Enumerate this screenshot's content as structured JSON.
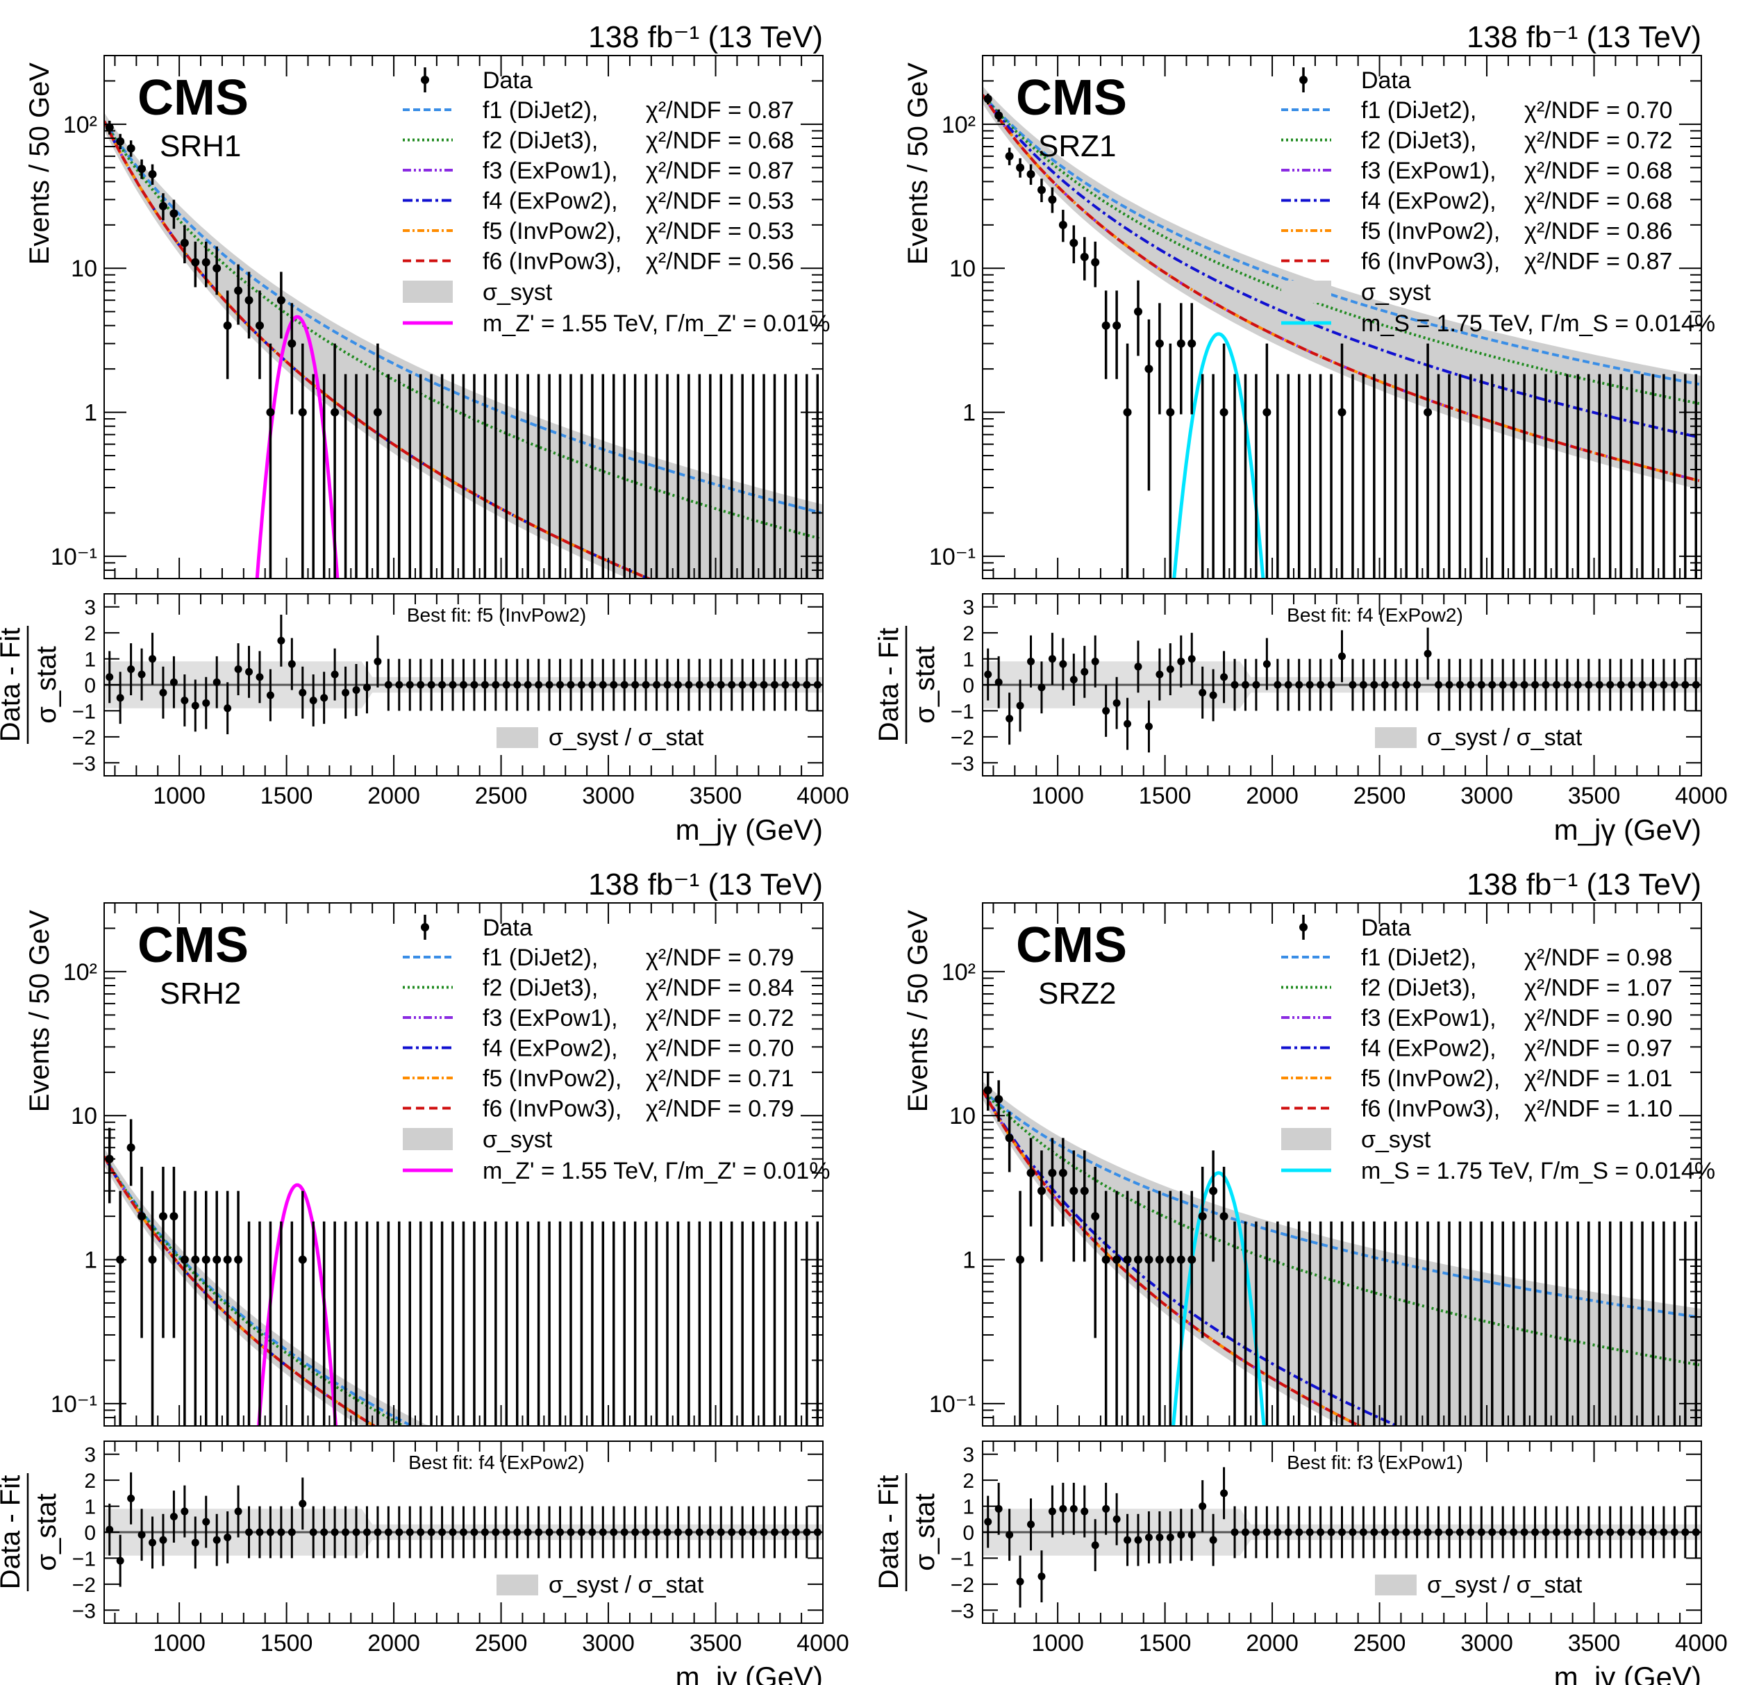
{
  "figure": {
    "common": {
      "lumi_label": "138 fb⁻¹ (13 TeV)",
      "cms_label": "CMS",
      "ylabel_top": "Events / 50 GeV",
      "ylabel_bottom_num": "Data - Fit",
      "ylabel_bottom_den": "σ_stat",
      "xlabel": "m_jγ (GeV)",
      "legend_data": "Data",
      "legend_syst": "σ_syst",
      "ratio_legend": "σ_syst / σ_stat",
      "x_ticks": [
        1000,
        1500,
        2000,
        2500,
        3000,
        3500,
        4000
      ],
      "y_ticks_top": [
        "10⁻¹",
        "1",
        "10",
        "10²"
      ],
      "y_ticks_bottom": [
        -3,
        -2,
        -1,
        0,
        1,
        2,
        3
      ],
      "function_labels": [
        "f1 (DiJet2),",
        "f2 (DiJet3),",
        "f3 (ExPow1),",
        "f4 (ExPow2),",
        "f5 (InvPow2),",
        "f6 (InvPow3),"
      ],
      "function_colors": [
        "#3a8ee6",
        "#1f8a1f",
        "#8a2be2",
        "#1010d0",
        "#ff8c00",
        "#d01010"
      ]
    }
  },
  "chart_data": [
    {
      "type": "scatter",
      "region": "SRH1",
      "xlabel": "m_jγ (GeV)",
      "ylabel": "Events / 50 GeV",
      "xlim": [
        650,
        4000
      ],
      "ylim": [
        0.07,
        300
      ],
      "y_log": true,
      "chi2": [
        "χ²/NDF = 0.87",
        "χ²/NDF = 0.68",
        "χ²/NDF = 0.87",
        "χ²/NDF = 0.53",
        "χ²/NDF = 0.53",
        "χ²/NDF = 0.56"
      ],
      "signal_label": "m_Z' = 1.55 TeV, Γ/m_Z' = 0.01%",
      "signal_color": "#ff00ff",
      "signal": {
        "mass": 1550,
        "peak": 4.6,
        "sigma": 48
      },
      "best_fit": "Best fit: f5 (InvPow2)",
      "fit_steep": {
        "a": 105,
        "b": 4.6
      },
      "fit_shallow": {
        "a": 105,
        "b": 3.45
      },
      "data_x": [
        675,
        725,
        775,
        825,
        875,
        925,
        975,
        1025,
        1075,
        1125,
        1175,
        1225,
        1275,
        1325,
        1375,
        1425,
        1475,
        1525,
        1575,
        1625,
        1675,
        1725,
        1775,
        1825,
        1875,
        1925
      ],
      "data_y": [
        95,
        76,
        68,
        49,
        45,
        27,
        24,
        15,
        11,
        11,
        10,
        4,
        7,
        6,
        4,
        1,
        6,
        3,
        1,
        0,
        0,
        1,
        0,
        0,
        0,
        1
      ],
      "pulls": [
        0.3,
        -0.5,
        0.6,
        0.4,
        1.0,
        -0.3,
        0.1,
        -0.6,
        -0.8,
        -0.7,
        0.1,
        -0.9,
        0.6,
        0.5,
        0.3,
        -0.4,
        1.7,
        0.8,
        -0.3,
        -0.6,
        -0.5,
        0.4,
        -0.3,
        -0.2,
        -0.1,
        0.9
      ]
    },
    {
      "type": "scatter",
      "region": "SRZ1",
      "xlabel": "m_jγ (GeV)",
      "ylabel": "Events / 50 GeV",
      "xlim": [
        650,
        4000
      ],
      "ylim": [
        0.07,
        300
      ],
      "y_log": true,
      "chi2": [
        "χ²/NDF = 0.70",
        "χ²/NDF = 0.72",
        "χ²/NDF = 0.68",
        "χ²/NDF = 0.68",
        "χ²/NDF = 0.86",
        "χ²/NDF = 0.87"
      ],
      "signal_label": "m_S = 1.75 TeV, Γ/m_S = 0.014%",
      "signal_color": "#00e5ff",
      "signal": {
        "mass": 1750,
        "peak": 3.5,
        "sigma": 55
      },
      "best_fit": "Best fit: f4 (ExPow2)",
      "fit_steep": {
        "a": 160,
        "b": 3.4
      },
      "fit_shallow": {
        "a": 160,
        "b": 2.55
      },
      "data_x": [
        675,
        725,
        775,
        825,
        875,
        925,
        975,
        1025,
        1075,
        1125,
        1175,
        1225,
        1275,
        1325,
        1375,
        1425,
        1475,
        1525,
        1575,
        1625,
        1675,
        1725,
        1775,
        1975,
        2325,
        2725
      ],
      "data_y": [
        150,
        115,
        60,
        50,
        45,
        35,
        30,
        20,
        15,
        12,
        11,
        4,
        4,
        1,
        5,
        2,
        3,
        1,
        3,
        3,
        0,
        0,
        1,
        1,
        1,
        1
      ],
      "pulls": [
        0.4,
        0.1,
        -1.3,
        -0.8,
        0.9,
        -0.1,
        1.0,
        0.8,
        0.2,
        0.5,
        0.9,
        -1.0,
        -0.7,
        -1.5,
        0.7,
        -1.6,
        0.4,
        0.6,
        0.9,
        1.0,
        -0.3,
        -0.4,
        0.3,
        0.8,
        1.1,
        1.2
      ]
    },
    {
      "type": "scatter",
      "region": "SRH2",
      "xlabel": "m_jγ (GeV)",
      "ylabel": "Events / 50 GeV",
      "xlim": [
        650,
        4000
      ],
      "ylim": [
        0.07,
        300
      ],
      "y_log": true,
      "chi2": [
        "χ²/NDF = 0.79",
        "χ²/NDF = 0.84",
        "χ²/NDF = 0.72",
        "χ²/NDF = 0.70",
        "χ²/NDF = 0.71",
        "χ²/NDF = 0.79"
      ],
      "signal_label": "m_Z' = 1.55 TeV, Γ/m_Z' = 0.01%",
      "signal_color": "#ff00ff",
      "signal": {
        "mass": 1550,
        "peak": 3.3,
        "sigma": 48
      },
      "best_fit": "Best fit: f4 (ExPow2)",
      "fit_steep": {
        "a": 5.2,
        "b": 4.0
      },
      "fit_shallow": {
        "a": 5.2,
        "b": 3.7
      },
      "data_x": [
        675,
        725,
        775,
        825,
        875,
        925,
        975,
        1025,
        1075,
        1125,
        1175,
        1225,
        1275,
        1575
      ],
      "data_y": [
        5,
        1,
        6,
        2,
        1,
        2,
        2,
        1,
        1,
        1,
        1,
        1,
        1,
        1
      ],
      "pulls": [
        0.1,
        -1.1,
        1.3,
        -0.1,
        -0.4,
        -0.3,
        0.6,
        0.8,
        -0.4,
        0.4,
        -0.3,
        -0.2,
        0.8,
        1.1
      ]
    },
    {
      "type": "scatter",
      "region": "SRZ2",
      "xlabel": "m_jγ (GeV)",
      "ylabel": "Events / 50 GeV",
      "xlim": [
        650,
        4000
      ],
      "ylim": [
        0.07,
        300
      ],
      "y_log": true,
      "chi2": [
        "χ²/NDF = 0.98",
        "χ²/NDF = 1.07",
        "χ²/NDF = 0.90",
        "χ²/NDF = 0.97",
        "χ²/NDF = 1.01",
        "χ²/NDF = 1.10"
      ],
      "signal_label": "m_S = 1.75 TeV, Γ/m_S = 0.014%",
      "signal_color": "#00e5ff",
      "signal": {
        "mass": 1750,
        "peak": 4.0,
        "sigma": 55
      },
      "best_fit": "Best fit: f3 (ExPow1)",
      "fit_steep": {
        "a": 15,
        "b": 4.1
      },
      "fit_shallow": {
        "a": 15,
        "b": 2.0
      },
      "data_x": [
        675,
        725,
        775,
        825,
        875,
        925,
        975,
        1025,
        1075,
        1125,
        1175,
        1225,
        1275,
        1325,
        1375,
        1425,
        1475,
        1525,
        1575,
        1625,
        1675,
        1725,
        1775
      ],
      "data_y": [
        15,
        13,
        7,
        1,
        4,
        3,
        4,
        4,
        3,
        3,
        2,
        1,
        1,
        1,
        1,
        1,
        1,
        1,
        1,
        1,
        2,
        3,
        2
      ],
      "pulls": [
        0.4,
        0.9,
        -0.1,
        -1.9,
        0.3,
        -1.7,
        0.8,
        0.9,
        0.9,
        0.8,
        -0.5,
        0.9,
        0.5,
        -0.3,
        -0.3,
        -0.2,
        -0.2,
        -0.2,
        -0.1,
        -0.1,
        1.0,
        -0.3,
        1.5
      ]
    }
  ]
}
